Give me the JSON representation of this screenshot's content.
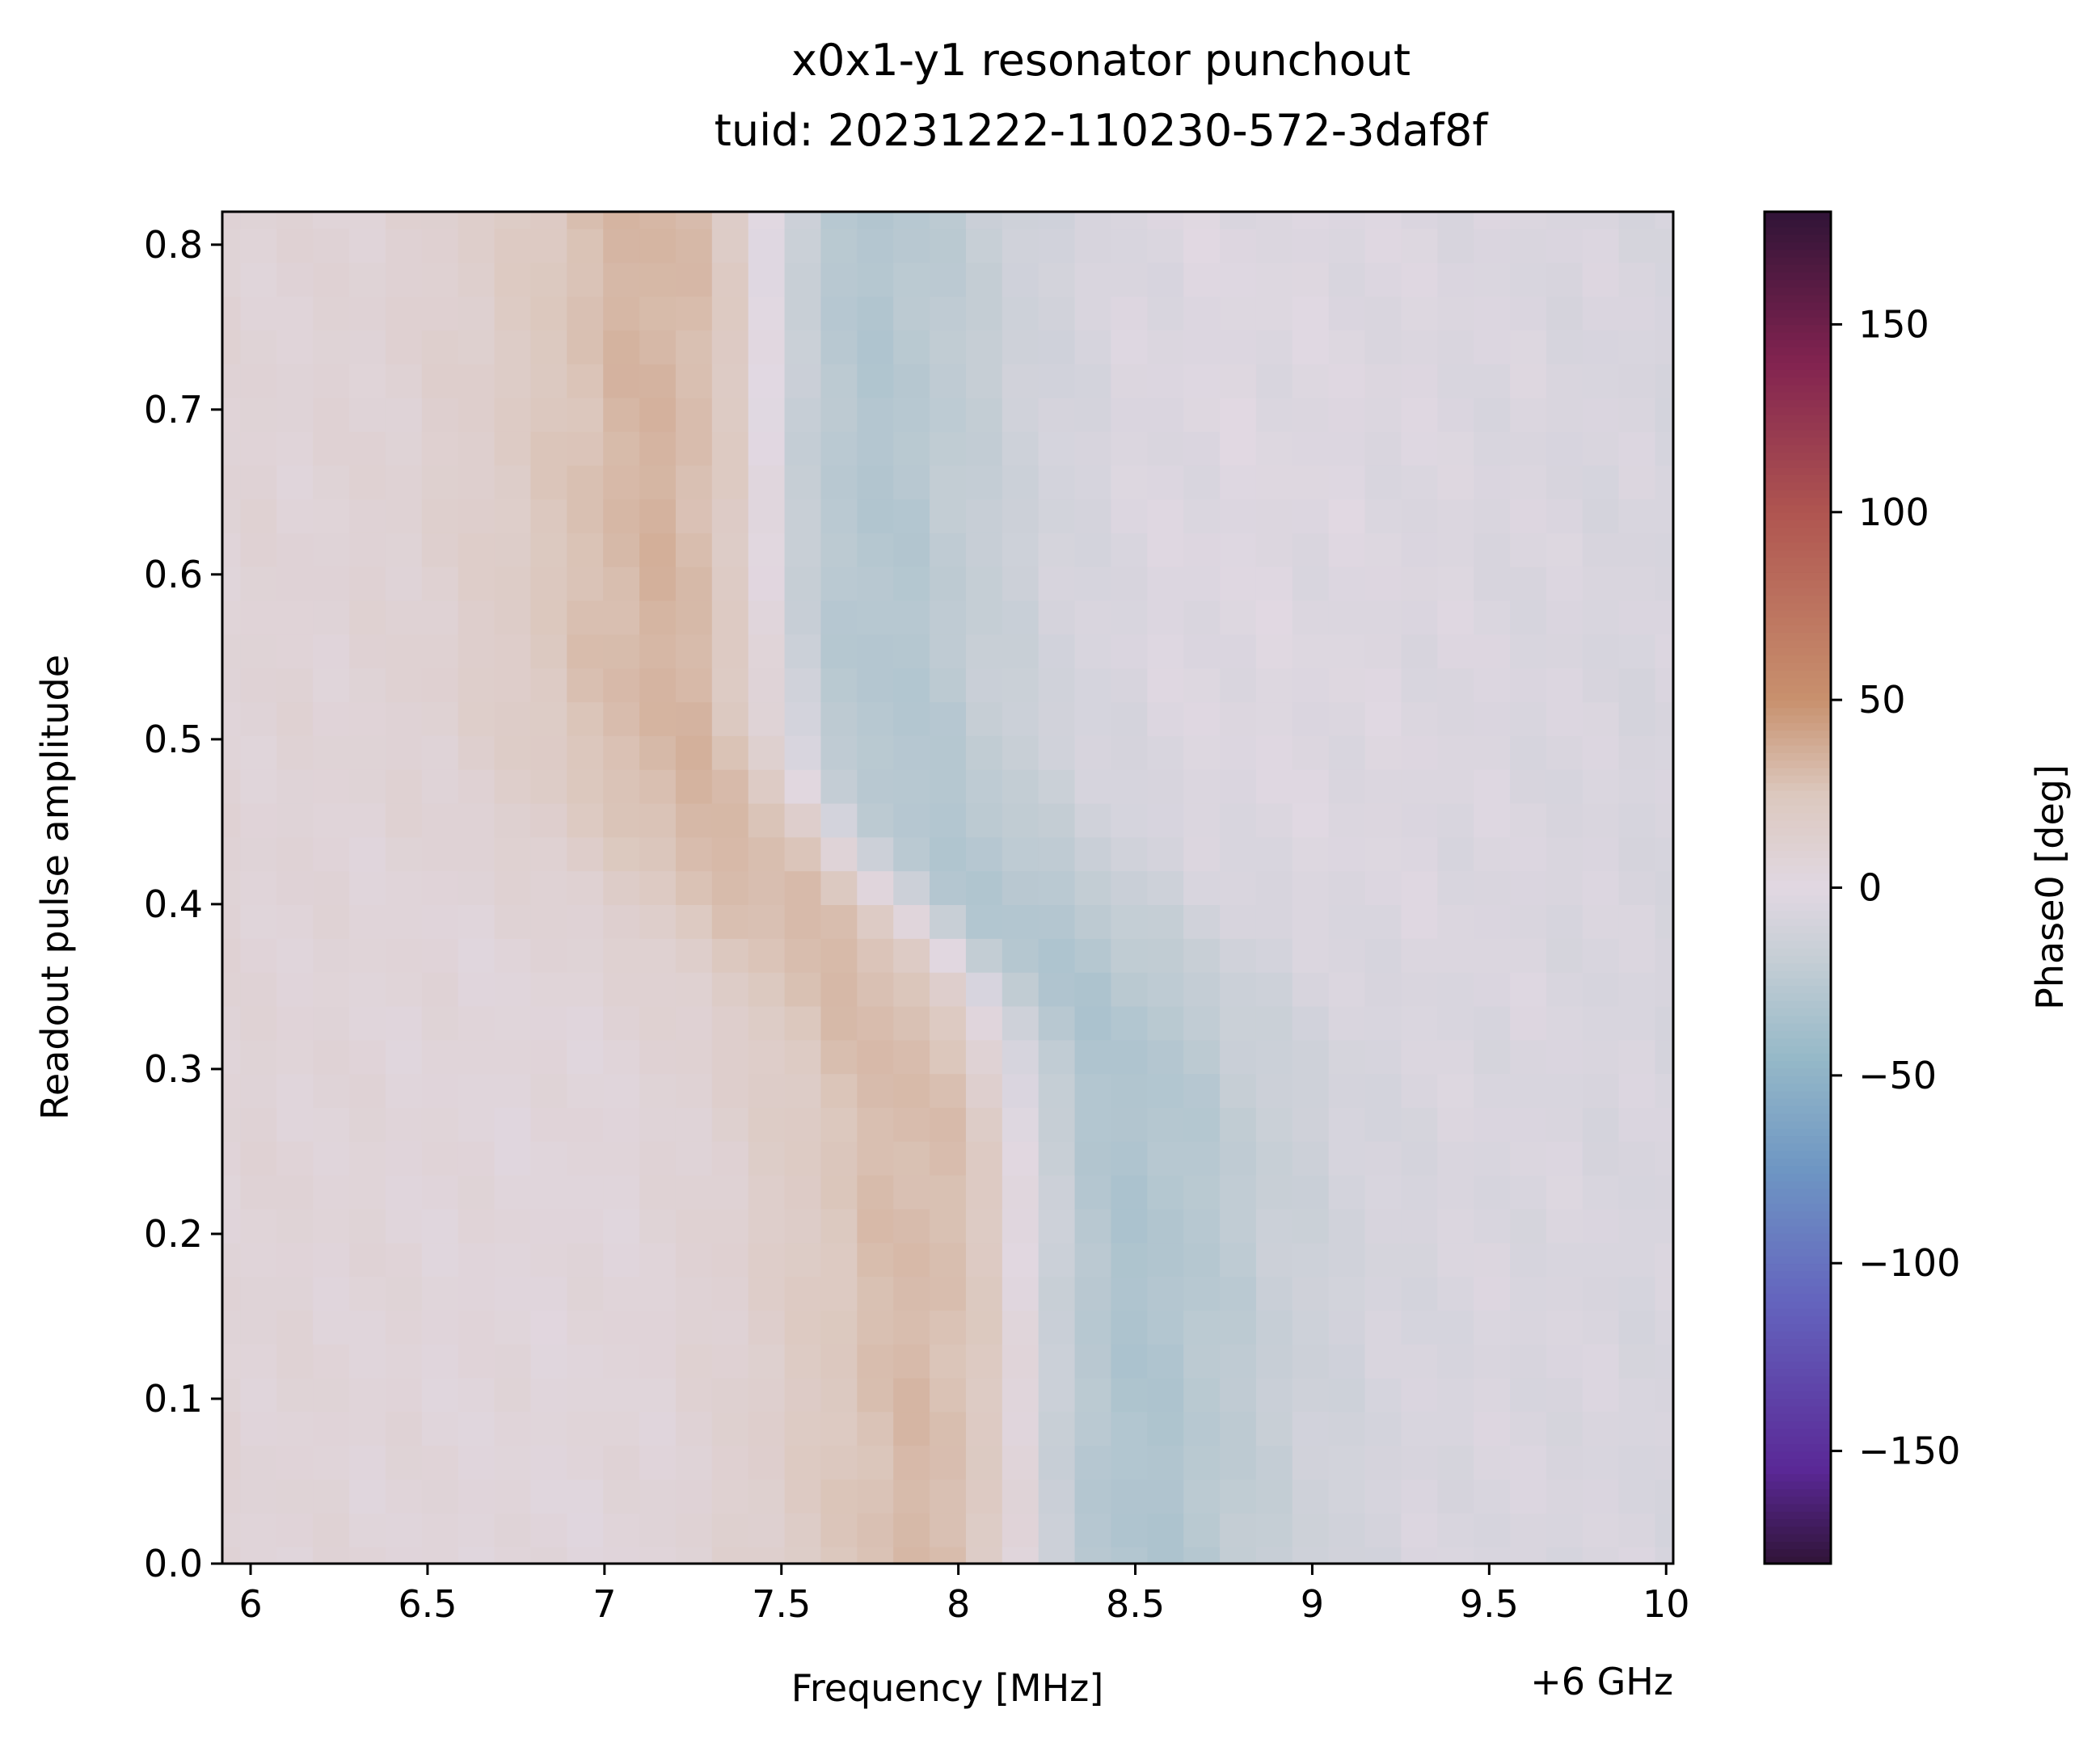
{
  "chart_data": {
    "type": "heatmap",
    "title": "x0x1-y1 resonator punchout",
    "subtitle": "tuid: 20231222-110230-572-3daf8f",
    "xlabel": "Frequency [MHz]",
    "x_offset_label": "+6 GHz",
    "ylabel": "Readout pulse amplitude",
    "colorbar_label": "Phase0 [deg]",
    "colormap": "twilight_shifted",
    "color_range": [
      -180,
      180
    ],
    "xlim": [
      5.92,
      10.02
    ],
    "ylim": [
      0,
      0.82
    ],
    "x_ticks": [
      6,
      6.5,
      7,
      7.5,
      8,
      8.5,
      9,
      9.5,
      10
    ],
    "x_tick_labels": [
      "6",
      "6.5",
      "7",
      "7.5",
      "8",
      "8.5",
      "9",
      "9.5",
      "10"
    ],
    "y_ticks": [
      0,
      0.1,
      0.2,
      0.3,
      0.4,
      0.5,
      0.6,
      0.7,
      0.8
    ],
    "y_tick_labels": [
      "0.0",
      "0.1",
      "0.2",
      "0.3",
      "0.4",
      "0.5",
      "0.6",
      "0.7",
      "0.8"
    ],
    "colorbar_ticks": [
      150,
      100,
      50,
      0,
      -50,
      -100,
      -150
    ],
    "colorbar_tick_labels": [
      "150",
      "100",
      "50",
      "0",
      "−50",
      "−100",
      "−150"
    ],
    "grid": false,
    "frequency_start": 5.92,
    "frequency_end": 10.02,
    "frequency_points": 41,
    "amplitude_start": 0,
    "amplitude_end": 0.82,
    "amplitude_points": 41,
    "model": {
      "low_power_resonance": 8.2,
      "high_power_resonance": 7.45,
      "transition_amplitude": 0.4,
      "transition_width": 0.04,
      "linewidth": 0.3,
      "max_phase_deg": 58,
      "background_slope_deg_per_mhz": 10
    }
  }
}
